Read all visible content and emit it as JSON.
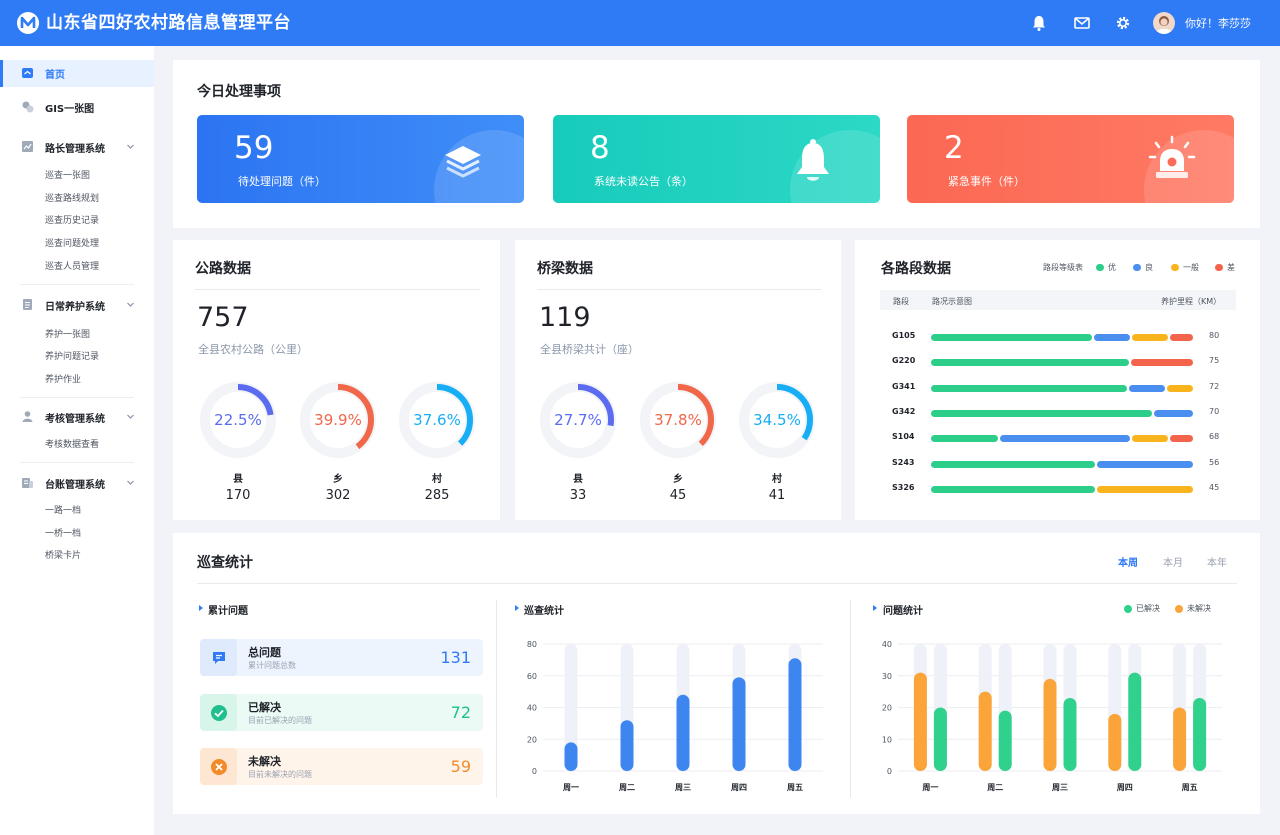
{
  "header": {
    "title": "山东省四好农村路信息管理平台",
    "greeting": "你好！李莎莎",
    "icons": [
      "bell-icon",
      "mail-icon",
      "gear-icon"
    ]
  },
  "sidebar": {
    "home": "首页",
    "gis": "GIS一张图",
    "groups": [
      {
        "label": "路长管理系统",
        "icon": "chart-icon",
        "items": [
          "巡查一张图",
          "巡查路线规划",
          "巡查历史记录",
          "巡查问题处理",
          "巡查人员管理"
        ]
      },
      {
        "label": "日常养护系统",
        "icon": "document-icon",
        "items": [
          "养护一张图",
          "养护问题记录",
          "养护作业"
        ]
      },
      {
        "label": "考核管理系统",
        "icon": "user-icon",
        "items": [
          "考核数据查看"
        ]
      },
      {
        "label": "台账管理系统",
        "icon": "ledger-icon",
        "items": [
          "一路一档",
          "一桥一档",
          "桥梁卡片"
        ]
      }
    ]
  },
  "todo": {
    "title": "今日处理事项",
    "cards": [
      {
        "value": "59",
        "label": "待处理问题（件）",
        "color": "#2f7bf3"
      },
      {
        "value": "8",
        "label": "系统未读公告（条）",
        "color": "#1ccfbe"
      },
      {
        "value": "2",
        "label": "紧急事件（件）",
        "color": "#fc6c58"
      }
    ]
  },
  "road": {
    "title": "公路数据",
    "total": "757",
    "caption": "全县农村公路（公里）",
    "rings": [
      {
        "pct": "22.5%",
        "fraction": 0.225,
        "cat": "县",
        "count": "170",
        "color": "#5b6cf0"
      },
      {
        "pct": "39.9%",
        "fraction": 0.399,
        "cat": "乡",
        "count": "302",
        "color": "#f0674a"
      },
      {
        "pct": "37.6%",
        "fraction": 0.376,
        "cat": "村",
        "count": "285",
        "color": "#17aef5"
      }
    ]
  },
  "bridge": {
    "title": "桥梁数据",
    "total": "119",
    "caption": "全县桥梁共计（座）",
    "rings": [
      {
        "pct": "27.7%",
        "fraction": 0.277,
        "cat": "县",
        "count": "33",
        "color": "#5b6cf0"
      },
      {
        "pct": "37.8%",
        "fraction": 0.378,
        "cat": "乡",
        "count": "45",
        "color": "#f0674a"
      },
      {
        "pct": "34.5%",
        "fraction": 0.345,
        "cat": "村",
        "count": "41",
        "color": "#17aef5"
      }
    ]
  },
  "segments": {
    "title": "各路段数据",
    "legend_title": "路段等级表",
    "legend": [
      {
        "label": "优",
        "color": "#2dce89"
      },
      {
        "label": "良",
        "color": "#4a8ff0"
      },
      {
        "label": "一般",
        "color": "#f9b41d"
      },
      {
        "label": "差",
        "color": "#f4634c"
      }
    ],
    "col_segment": "路段",
    "col_status": "路况示意图",
    "col_km": "养护里程（KM）",
    "rows": [
      {
        "name": "G105",
        "km": "80",
        "parts": [
          0.63,
          0.14,
          0.14,
          0.09
        ]
      },
      {
        "name": "G220",
        "km": "75",
        "parts": [
          0.76,
          0,
          0,
          0.24
        ]
      },
      {
        "name": "G341",
        "km": "72",
        "parts": [
          0.76,
          0.14,
          0.1,
          0
        ]
      },
      {
        "name": "G342",
        "km": "70",
        "parts": [
          0.85,
          0.15,
          0,
          0
        ]
      },
      {
        "name": "S104",
        "km": "68",
        "parts": [
          0.26,
          0.51,
          0.14,
          0.09
        ]
      },
      {
        "name": "S243",
        "km": "56",
        "parts": [
          0.63,
          0.37,
          0,
          0
        ]
      },
      {
        "name": "S326",
        "km": "45",
        "parts": [
          0.63,
          0,
          0.37,
          0
        ]
      }
    ]
  },
  "patrol": {
    "title": "巡查统计",
    "tabs": [
      "本周",
      "本月",
      "本年"
    ],
    "summary": {
      "title": "累计问题",
      "items": [
        {
          "title": "总问题",
          "sub": "累计问题总数",
          "value": "131",
          "color": "#2e7bf5",
          "bg": "#eef4fe",
          "icon": "message-icon"
        },
        {
          "title": "已解决",
          "sub": "目前已解决的问题",
          "value": "72",
          "color": "#1fc08e",
          "bg": "#ebfaf4",
          "icon": "check-icon"
        },
        {
          "title": "未解决",
          "sub": "目前未解决的问题",
          "value": "59",
          "color": "#f28a2a",
          "bg": "#fef4ea",
          "icon": "close-icon"
        }
      ]
    }
  },
  "chart_data": [
    {
      "type": "bar",
      "title": "巡查统计",
      "categories": [
        "周一",
        "周二",
        "周三",
        "周四",
        "周五"
      ],
      "ylim": [
        0,
        80
      ],
      "yticks": [
        0,
        20,
        40,
        60,
        80
      ],
      "series": [
        {
          "values": [
            18,
            32,
            48,
            59,
            71
          ],
          "color": "#3d86f0"
        }
      ]
    },
    {
      "type": "bar",
      "title": "问题统计",
      "categories": [
        "周一",
        "周二",
        "周三",
        "周四",
        "周五"
      ],
      "ylim": [
        0,
        40
      ],
      "yticks": [
        0,
        10,
        20,
        30,
        40
      ],
      "legend": "top-right",
      "series": [
        {
          "name": "已解决",
          "values": [
            20,
            19,
            23,
            31,
            23
          ],
          "color": "#2fd18c"
        },
        {
          "name": "未解决",
          "values": [
            31,
            25,
            29,
            18,
            20
          ],
          "color": "#fba43a"
        }
      ]
    }
  ]
}
